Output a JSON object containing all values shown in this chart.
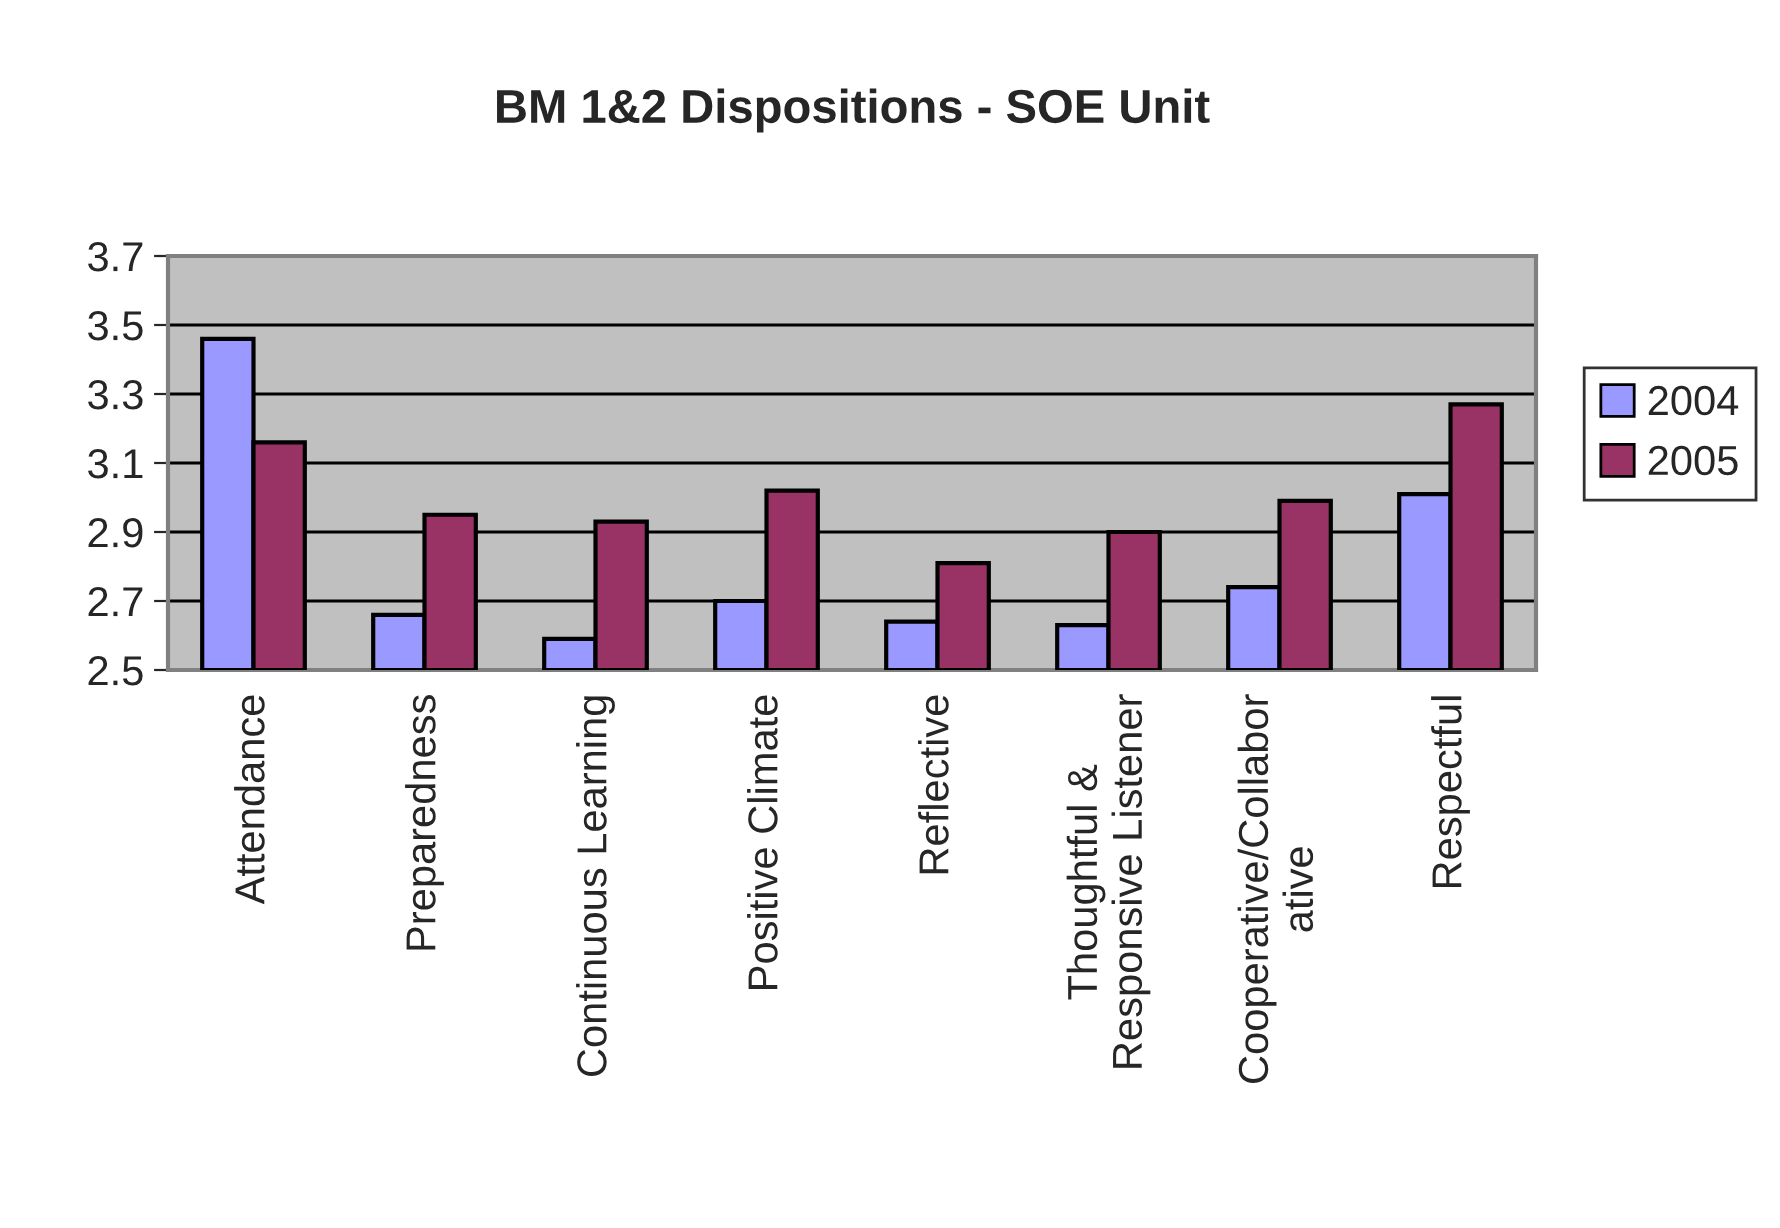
{
  "chart_data": {
    "type": "bar",
    "title": "BM 1&2 Dispositions - SOE Unit",
    "categories": [
      "Attendance",
      "Preparedness",
      "Continuous Learning",
      "Positive Climate",
      "Reflective",
      "Thoughtful &\nResponsive Listener",
      "Cooperative/Collabor\native",
      "Respectful"
    ],
    "series": [
      {
        "name": "2004",
        "color": "#9999ff",
        "values": [
          3.46,
          2.66,
          2.59,
          2.7,
          2.64,
          2.63,
          2.74,
          3.01
        ]
      },
      {
        "name": "2005",
        "color": "#993366",
        "values": [
          3.16,
          2.95,
          2.93,
          3.02,
          2.81,
          2.9,
          2.99,
          3.27
        ]
      }
    ],
    "ylim": [
      2.5,
      3.7
    ],
    "yticks": [
      {
        "value": 2.5,
        "label": "2.5"
      },
      {
        "value": 2.7,
        "label": "2.7"
      },
      {
        "value": 2.9,
        "label": "2.9"
      },
      {
        "value": 3.1,
        "label": "3.1"
      },
      {
        "value": 3.3,
        "label": "3.3"
      },
      {
        "value": 3.5,
        "label": "3.5"
      },
      {
        "value": 3.7,
        "label": "3.7"
      }
    ],
    "grid": "y",
    "legend": "right"
  }
}
